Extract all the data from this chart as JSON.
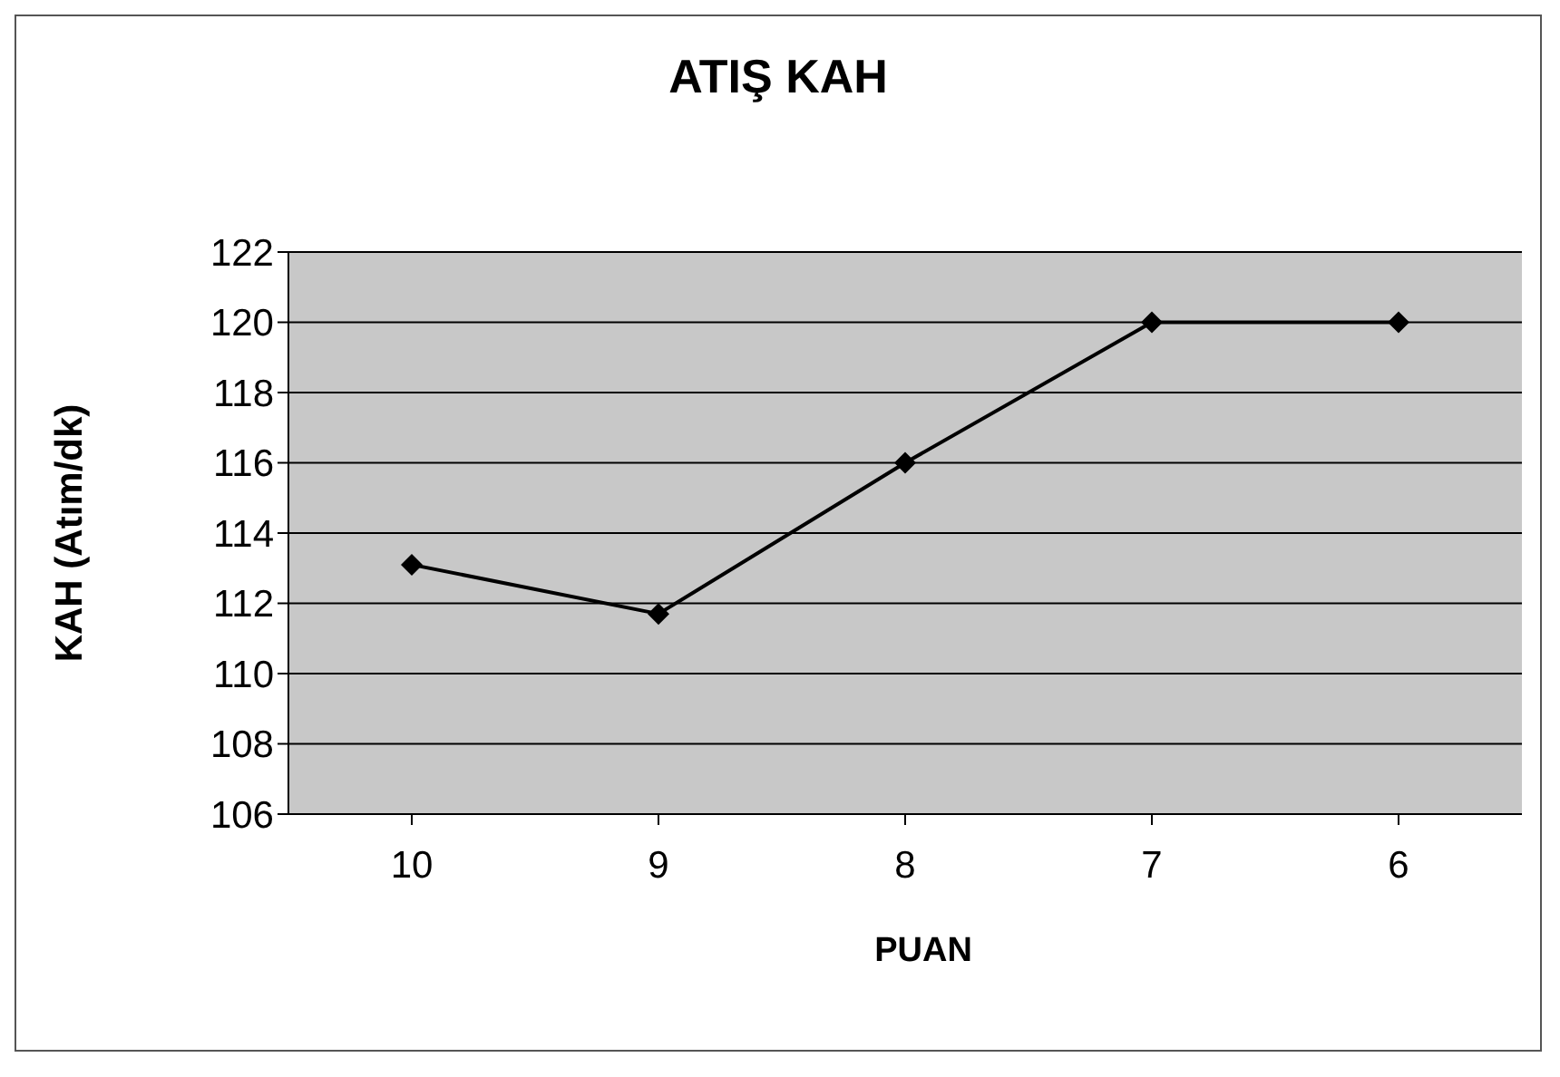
{
  "chart_data": {
    "type": "line",
    "title": "ATIŞ KAH",
    "xlabel": "PUAN",
    "ylabel": "KAH (Atım/dk)",
    "categories": [
      "10",
      "9",
      "8",
      "7",
      "6"
    ],
    "series": [
      {
        "color": "#000000",
        "values": [
          113.1,
          111.7,
          116,
          120,
          120
        ]
      }
    ],
    "ylim": [
      106,
      122
    ],
    "yticks": [
      106,
      108,
      110,
      112,
      114,
      116,
      118,
      120,
      122
    ],
    "grid": "y",
    "marker": "diamond",
    "line_style": "solid"
  }
}
